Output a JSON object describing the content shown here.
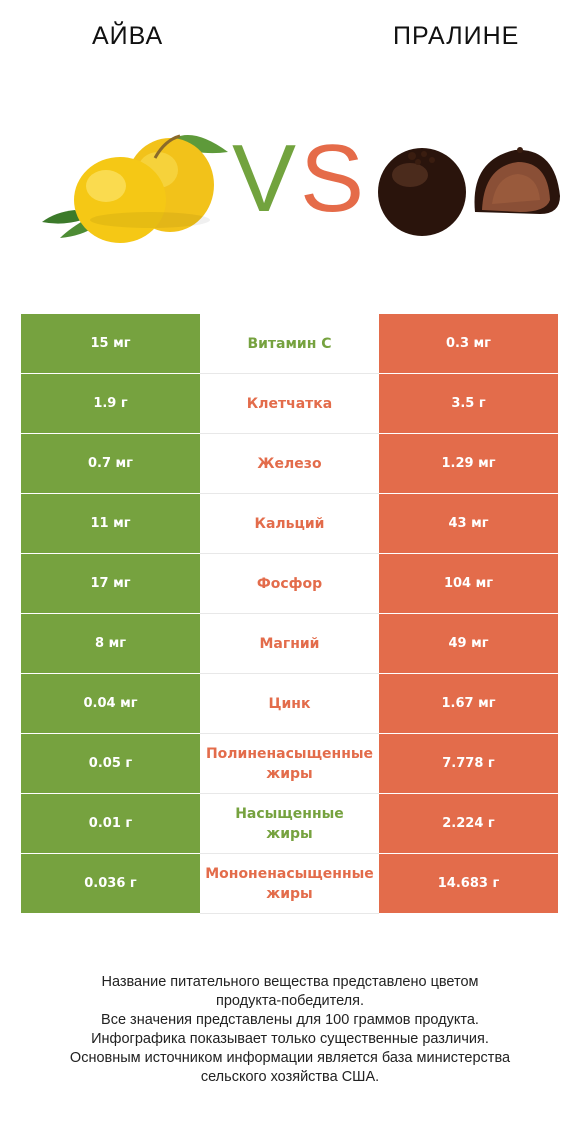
{
  "header": {
    "left_title": "АЙВА",
    "right_title": "ПРАЛИНЕ",
    "vs_v": "V",
    "vs_s": "S"
  },
  "colors": {
    "left_accent": "#76a23f",
    "right_accent": "#e36c4b"
  },
  "rows": [
    {
      "left": "15 мг",
      "nutrient": "Витамин C",
      "right": "0.3 мг",
      "winner": "left"
    },
    {
      "left": "1.9 г",
      "nutrient": "Клетчатка",
      "right": "3.5 г",
      "winner": "right"
    },
    {
      "left": "0.7 мг",
      "nutrient": "Железо",
      "right": "1.29 мг",
      "winner": "right"
    },
    {
      "left": "11 мг",
      "nutrient": "Кальций",
      "right": "43 мг",
      "winner": "right"
    },
    {
      "left": "17 мг",
      "nutrient": "Фосфор",
      "right": "104 мг",
      "winner": "right"
    },
    {
      "left": "8 мг",
      "nutrient": "Магний",
      "right": "49 мг",
      "winner": "right"
    },
    {
      "left": "0.04 мг",
      "nutrient": "Цинк",
      "right": "1.67 мг",
      "winner": "right"
    },
    {
      "left": "0.05 г",
      "nutrient": "Полиненасыщенные\nжиры",
      "right": "7.778 г",
      "winner": "right"
    },
    {
      "left": "0.01 г",
      "nutrient": "Насыщенные\nжиры",
      "right": "2.224 г",
      "winner": "left"
    },
    {
      "left": "0.036 г",
      "nutrient": "Мононенасыщенные\nжиры",
      "right": "14.683 г",
      "winner": "right"
    }
  ],
  "footnote": {
    "line1": "Название питательного вещества представлено цветом",
    "line2": "продукта-победителя.",
    "line3": "Все значения представлены для 100 граммов продукта.",
    "line4": "Инфографика показывает только существенные различия.",
    "line5": "Основным источником информации является база министерства",
    "line6": "сельского хозяйства США."
  }
}
